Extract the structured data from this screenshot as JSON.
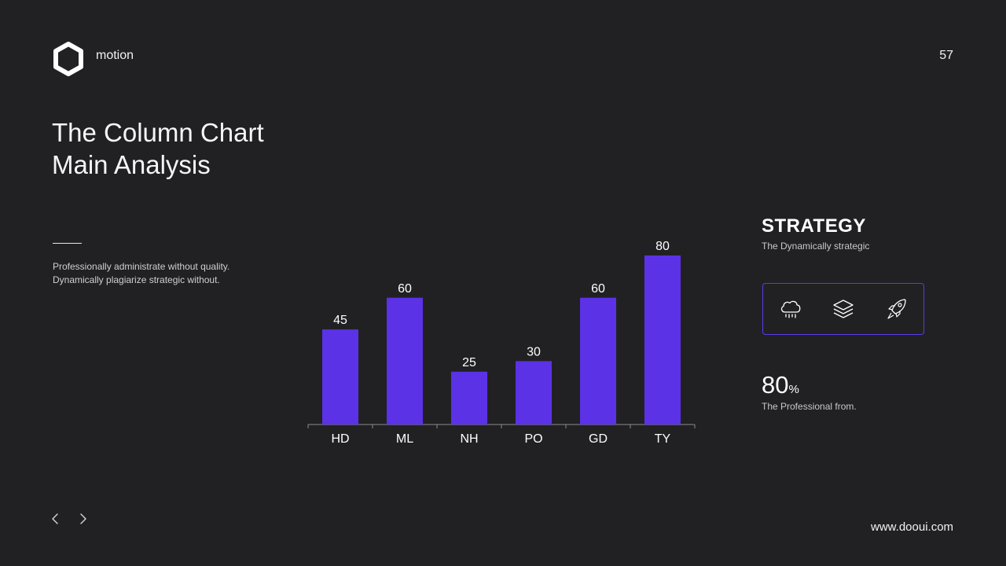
{
  "header": {
    "brand": "motion",
    "page_number": "57",
    "logo_icon": "hexagon-icon"
  },
  "slide": {
    "title_line1": "The Column Chart",
    "title_line2": "Main Analysis",
    "description_line1": "Professionally administrate without quality.",
    "description_line2": "Dynamically plagiarize strategic without."
  },
  "side_panel": {
    "heading": "STRATEGY",
    "subheading": "The Dynamically strategic",
    "icons": [
      "cloud-rain-icon",
      "layers-icon",
      "rocket-icon"
    ],
    "stat_value": "80",
    "stat_unit": "%",
    "stat_caption": "The Professional from."
  },
  "footer": {
    "website": "www.dooui.com",
    "prev_icon": "chevron-left-icon",
    "next_icon": "chevron-right-icon"
  },
  "colors": {
    "background": "#212124",
    "accent": "#5b32e6",
    "text": "#ffffff"
  },
  "chart_data": {
    "type": "bar",
    "categories": [
      "HD",
      "ML",
      "NH",
      "PO",
      "GD",
      "TY"
    ],
    "values": [
      45,
      60,
      25,
      30,
      60,
      80
    ],
    "ylim": [
      0,
      80
    ],
    "grid": false,
    "data_labels": true
  }
}
